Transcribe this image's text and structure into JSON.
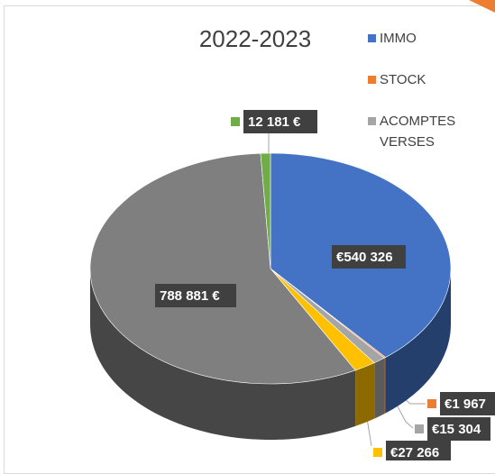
{
  "chart_data": {
    "type": "pie",
    "title": "2022-2023",
    "categories": [
      "IMMO",
      "STOCK",
      "ACOMPTES VERSES",
      null,
      null,
      null
    ],
    "values": [
      540326,
      1967,
      15304,
      27266,
      788881,
      12181
    ],
    "value_labels": [
      "€540 326",
      "€1 967",
      "€15 304",
      "€27 266",
      "788 881 €",
      "12 181 €"
    ],
    "colors": [
      "#4472c4",
      "#ed7d31",
      "#a5a5a5",
      "#ffc000",
      "#7f7f7f",
      "#70ad47"
    ]
  }
}
